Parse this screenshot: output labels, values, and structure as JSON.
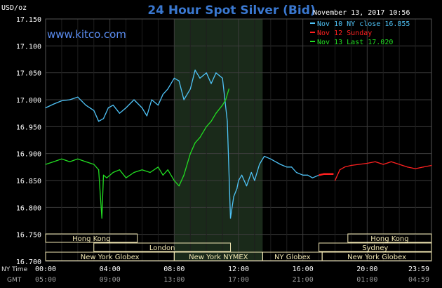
{
  "header": {
    "unit": "USD/oz",
    "title": "24 Hour Spot Silver (Bid)",
    "timestamp": "November 13, 2017 10:56",
    "source": "www.kitco.com"
  },
  "colors": {
    "background": "#000000",
    "plot_background": "#000000",
    "active_session": "#1a2a1a",
    "grid": "#3c3c3c",
    "title": "#3a78d0",
    "axis_text": "#ffffff",
    "source": "#5a8cf0",
    "session_bar": "#f2e8b4"
  },
  "legend": [
    {
      "label": "Nov 10 NY close 16.855",
      "color": "#4fc3f7"
    },
    {
      "label": "Nov 12 Sunday",
      "color": "#ff2020"
    },
    {
      "label": "Nov 13 Last 17.020",
      "color": "#22dd22"
    }
  ],
  "axes": {
    "y_ticks": [
      "17.150",
      "17.100",
      "17.050",
      "17.000",
      "16.950",
      "16.900",
      "16.850",
      "16.800",
      "16.750",
      "16.700"
    ],
    "x_ticks_ny": [
      "00:00",
      "04:00",
      "08:00",
      "12:00",
      "16:00",
      "20:00",
      "23:59"
    ],
    "x_ticks_gmt": [
      "05:00",
      "09:00",
      "13:00",
      "17:00",
      "21:00",
      "01:00",
      "04:59"
    ],
    "ny_label": "NY Time",
    "gmt_label": "GMT"
  },
  "sessions": [
    {
      "label": "Hong Kong",
      "row": 0,
      "start": 0,
      "end": 5.7
    },
    {
      "label": "Hong Kong",
      "row": 0,
      "start": 18.8,
      "end": 24
    },
    {
      "label": "London",
      "row": 1,
      "start": 3,
      "end": 11.5
    },
    {
      "label": "Sydney",
      "row": 1,
      "start": 17,
      "end": 24
    },
    {
      "label": "New York Globex",
      "row": 2,
      "start": 0,
      "end": 8
    },
    {
      "label": "New York NYMEX",
      "row": 2,
      "start": 8,
      "end": 13.5
    },
    {
      "label": "NY Globex",
      "row": 2,
      "start": 13.5,
      "end": 17.2
    },
    {
      "label": "New York Globex",
      "row": 2,
      "start": 17.2,
      "end": 24
    }
  ],
  "chart_data": {
    "type": "line",
    "title": "24 Hour Spot Silver (Bid)",
    "ylabel": "USD/oz",
    "xlabel": "NY Time",
    "xlim": [
      0,
      24
    ],
    "ylim": [
      16.7,
      17.15
    ],
    "highlight_range_hours": [
      8,
      13.5
    ],
    "series": [
      {
        "name": "Nov 10 NY close 16.855",
        "color": "#4fc3f7",
        "x": [
          0,
          0.5,
          1,
          1.5,
          2,
          2.5,
          3,
          3.3,
          3.6,
          3.9,
          4.2,
          4.6,
          5,
          5.5,
          6,
          6.3,
          6.6,
          7,
          7.3,
          7.6,
          8,
          8.3,
          8.6,
          9,
          9.3,
          9.6,
          10,
          10.3,
          10.6,
          11,
          11.3,
          11.5,
          11.7,
          11.9,
          12,
          12.2,
          12.5,
          12.8,
          13,
          13.3,
          13.6,
          14,
          14.3,
          14.6,
          15,
          15.3,
          15.6,
          16,
          16.3,
          16.6,
          17
        ],
        "y": [
          16.985,
          16.992,
          16.998,
          17.0,
          17.005,
          16.99,
          16.98,
          16.96,
          16.965,
          16.985,
          16.99,
          16.975,
          16.985,
          17.0,
          16.985,
          16.97,
          17.0,
          16.99,
          17.01,
          17.02,
          17.04,
          17.035,
          17.0,
          17.02,
          17.055,
          17.04,
          17.05,
          17.03,
          17.05,
          17.04,
          16.96,
          16.78,
          16.82,
          16.835,
          16.85,
          16.86,
          16.84,
          16.865,
          16.85,
          16.88,
          16.895,
          16.89,
          16.885,
          16.88,
          16.875,
          16.875,
          16.865,
          16.86,
          16.86,
          16.855,
          16.86
        ]
      },
      {
        "name": "Nov 12 Sunday",
        "color": "#ff2020",
        "x": [
          17,
          17.3,
          17.5,
          17.7,
          17.9
        ],
        "y": [
          16.86,
          16.862,
          16.862,
          16.862,
          16.862
        ]
      },
      {
        "name": "Nov 13 Last 17.020",
        "color": "#22dd22",
        "x": [
          0,
          0.5,
          1,
          1.5,
          2,
          2.5,
          3,
          3.3,
          3.5,
          3.6,
          3.8,
          4.2,
          4.6,
          5,
          5.5,
          6,
          6.5,
          7,
          7.3,
          7.6,
          8,
          8.3,
          8.6,
          9,
          9.3,
          9.6,
          10,
          10.3,
          10.6,
          11,
          11.2,
          11.4
        ],
        "y": [
          16.88,
          16.885,
          16.89,
          16.885,
          16.89,
          16.885,
          16.88,
          16.87,
          16.78,
          16.86,
          16.855,
          16.865,
          16.87,
          16.855,
          16.865,
          16.87,
          16.865,
          16.875,
          16.86,
          16.87,
          16.85,
          16.84,
          16.86,
          16.9,
          16.92,
          16.93,
          16.95,
          16.96,
          16.975,
          16.99,
          17.0,
          17.02
        ]
      },
      {
        "name": "",
        "color": "#ff2020",
        "x": [
          18,
          18.3,
          18.6,
          19,
          19.5,
          20,
          20.5,
          21,
          21.5,
          22,
          22.5,
          23,
          23.5,
          24
        ],
        "y": [
          16.85,
          16.87,
          16.875,
          16.878,
          16.88,
          16.882,
          16.885,
          16.88,
          16.885,
          16.88,
          16.875,
          16.872,
          16.875,
          16.878
        ]
      }
    ]
  }
}
